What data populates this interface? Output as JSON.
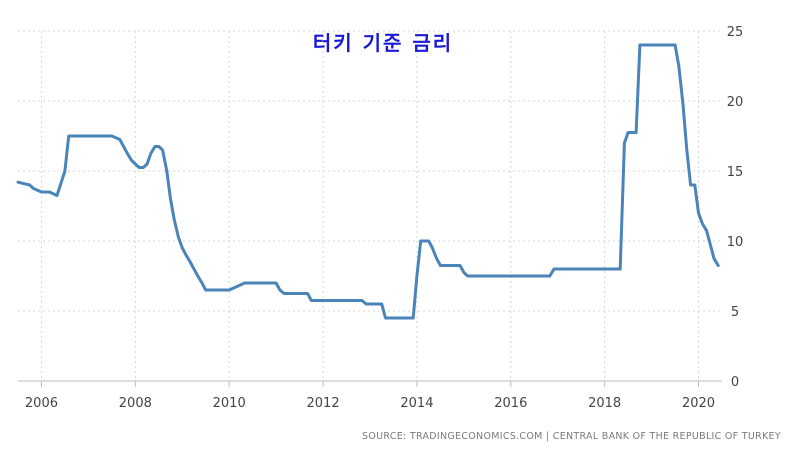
{
  "chart_data": {
    "type": "line",
    "title": "터키 기준 금리",
    "xlabel": "",
    "ylabel": "",
    "x_ticks": [
      "2006",
      "2008",
      "2010",
      "2012",
      "2014",
      "2016",
      "2018",
      "2020"
    ],
    "y_ticks": [
      "0",
      "5",
      "10",
      "15",
      "20",
      "25"
    ],
    "xlim": [
      2005.5,
      2020.5
    ],
    "ylim": [
      0,
      25
    ],
    "y_axis_position": "right",
    "grid": "dashed vertical and horizontal",
    "series": [
      {
        "name": "",
        "color": "#4a84b8",
        "x": [
          2005.5,
          2005.75,
          2005.83,
          2006.0,
          2006.17,
          2006.33,
          2006.5,
          2006.58,
          2007.0,
          2007.5,
          2007.67,
          2007.75,
          2007.83,
          2007.92,
          2008.0,
          2008.08,
          2008.17,
          2008.25,
          2008.33,
          2008.42,
          2008.5,
          2008.58,
          2008.67,
          2008.75,
          2008.83,
          2008.92,
          2009.0,
          2009.08,
          2009.17,
          2009.25,
          2009.33,
          2009.42,
          2009.5,
          2009.58,
          2009.67,
          2009.75,
          2009.83,
          2009.92,
          2010.0,
          2010.33,
          2010.5,
          2010.58,
          2011.0,
          2011.08,
          2011.17,
          2011.67,
          2011.75,
          2012.83,
          2012.92,
          2013.25,
          2013.33,
          2013.92,
          2014.0,
          2014.08,
          2014.25,
          2014.33,
          2014.42,
          2014.5,
          2014.92,
          2015.0,
          2015.08,
          2015.17,
          2016.83,
          2016.92,
          2018.33,
          2018.42,
          2018.5,
          2018.67,
          2018.75,
          2019.5,
          2019.58,
          2019.67,
          2019.75,
          2019.83,
          2019.92,
          2020.0,
          2020.08,
          2020.17,
          2020.25,
          2020.33,
          2020.42
        ],
        "values": [
          14.2,
          14.0,
          13.75,
          13.5,
          13.5,
          13.25,
          15.0,
          17.5,
          17.5,
          17.5,
          17.25,
          16.75,
          16.25,
          15.75,
          15.5,
          15.25,
          15.25,
          15.5,
          16.25,
          16.75,
          16.75,
          16.5,
          15.0,
          13.0,
          11.5,
          10.25,
          9.5,
          9.0,
          8.5,
          8.0,
          7.5,
          7.0,
          6.5,
          6.5,
          6.5,
          6.5,
          6.5,
          6.5,
          6.5,
          7.0,
          7.0,
          7.0,
          7.0,
          6.5,
          6.25,
          6.25,
          5.75,
          5.75,
          5.5,
          5.5,
          4.5,
          4.5,
          7.5,
          10.0,
          10.0,
          9.5,
          8.75,
          8.25,
          8.25,
          7.75,
          7.5,
          7.5,
          7.5,
          8.0,
          8.0,
          17.0,
          17.75,
          17.75,
          24.0,
          24.0,
          22.5,
          19.75,
          16.5,
          14.0,
          14.0,
          12.0,
          11.25,
          10.75,
          9.75,
          8.75,
          8.25
        ]
      }
    ]
  },
  "source_text": "SOURCE: TRADINGECONOMICS.COM | CENTRAL BANK OF THE REPUBLIC OF TURKEY"
}
